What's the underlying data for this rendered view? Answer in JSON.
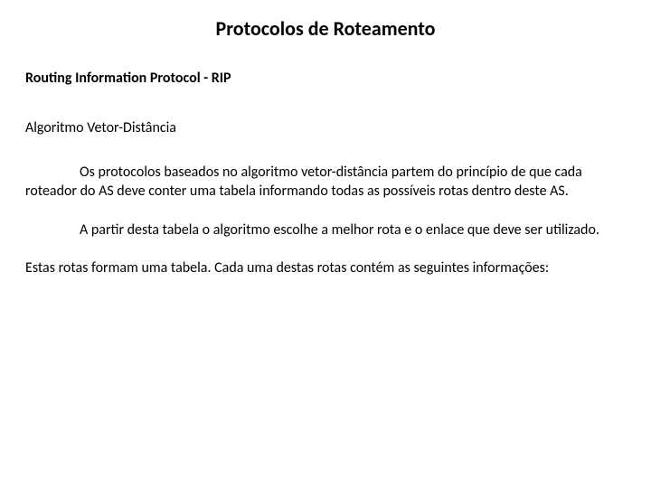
{
  "title": "Protocolos de Roteamento",
  "section_heading": "Routing Information Protocol - RIP",
  "subheading": "Algoritmo Vetor-Distância",
  "paragraphs": {
    "p1": "Os protocolos baseados no algoritmo vetor-distância partem do princípio de que cada roteador do AS deve conter uma tabela informando todas as possíveis rotas dentro deste AS.",
    "p2": "A partir desta tabela o algoritmo escolhe a melhor rota e o enlace que deve ser utilizado.",
    "p3": "Estas rotas formam uma tabela. Cada uma destas rotas contém as seguintes informações:"
  },
  "colors": {
    "background": "#ffffff",
    "text": "#000000"
  },
  "fonts": {
    "title_size": 22,
    "body_size": 16,
    "title_weight": "bold",
    "heading_weight": "bold"
  }
}
